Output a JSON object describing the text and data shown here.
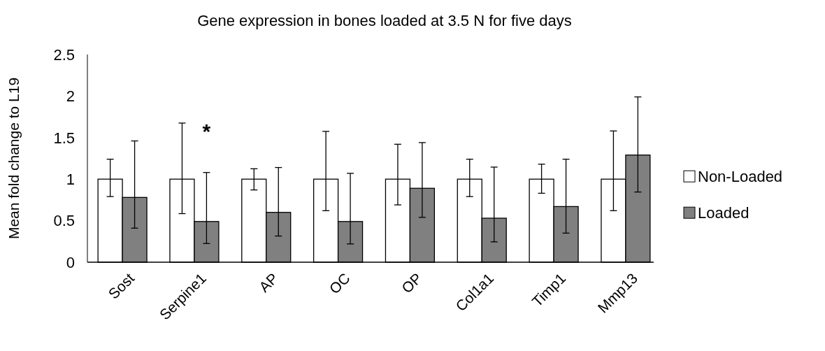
{
  "chart_data": {
    "type": "bar",
    "title": "Gene expression in bones loaded at 3.5 N for five days",
    "ylabel": "Mean fold change to L19",
    "categories": [
      "Sost",
      "Serpine1",
      "AP",
      "OC",
      "OP",
      "Col1a1",
      "Timp1",
      "Mmp13"
    ],
    "series": [
      {
        "name": "Non-Loaded",
        "color": "#ffffff",
        "values": [
          1,
          1,
          1,
          1,
          1,
          1,
          1,
          1
        ],
        "errors": [
          [
            0.79,
            1.24
          ],
          [
            0.585,
            1.675
          ],
          [
            0.87,
            1.125
          ],
          [
            0.62,
            1.575
          ],
          [
            0.69,
            1.42
          ],
          [
            0.79,
            1.24
          ],
          [
            0.83,
            1.18
          ],
          [
            0.62,
            1.58
          ]
        ]
      },
      {
        "name": "Loaded",
        "color": "#808080",
        "values": [
          0.78,
          0.49,
          0.6,
          0.49,
          0.89,
          0.53,
          0.67,
          1.29
        ],
        "errors": [
          [
            0.41,
            1.46
          ],
          [
            0.225,
            1.08
          ],
          [
            0.315,
            1.14
          ],
          [
            0.22,
            1.07
          ],
          [
            0.54,
            1.44
          ],
          [
            0.245,
            1.145
          ],
          [
            0.35,
            1.24
          ],
          [
            0.845,
            1.99
          ]
        ]
      }
    ],
    "ylim": [
      0,
      2.5
    ],
    "yticks": [
      0,
      0.5,
      1,
      1.5,
      2,
      2.5
    ],
    "grid": false,
    "legend": "right",
    "annotations": [
      "*"
    ]
  }
}
